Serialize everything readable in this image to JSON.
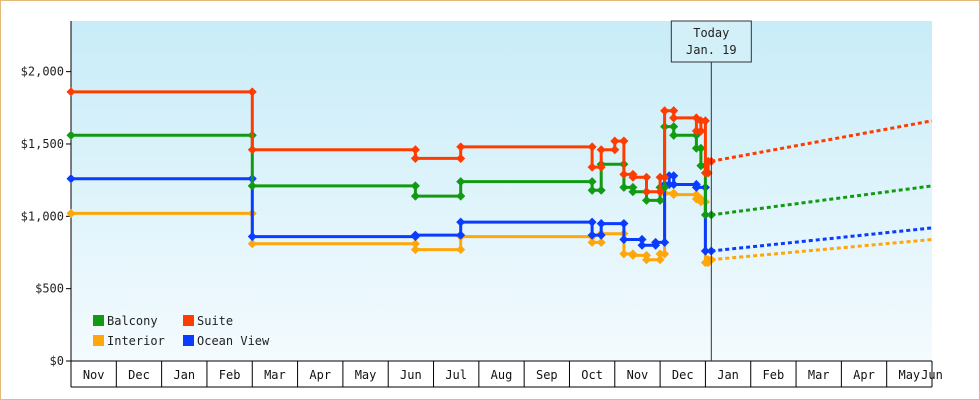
{
  "chart_data": {
    "type": "line",
    "style": "step",
    "y_ticks": [
      "$0",
      "$500",
      "$1,000",
      "$1,500",
      "$2,000"
    ],
    "y_tick_values": [
      0,
      500,
      1000,
      1500,
      2000
    ],
    "ylim": [
      0,
      2350
    ],
    "xlim": [
      0,
      19
    ],
    "months": [
      "Nov",
      "Dec",
      "Jan",
      "Feb",
      "Mar",
      "Apr",
      "May",
      "Jun",
      "Jul",
      "Aug",
      "Sep",
      "Oct",
      "Nov",
      "Dec",
      "Jan",
      "Feb",
      "Mar",
      "Apr",
      "May",
      "Jun"
    ],
    "today": {
      "line1": "Today",
      "line2": "Jan. 19",
      "x": 14.13
    },
    "grid": false,
    "legend": {
      "placement": "bottom-left"
    },
    "series": [
      {
        "name": "Suite",
        "color": "#ff3c00",
        "points": [
          [
            0,
            1860
          ],
          [
            4,
            1860
          ],
          [
            4,
            1460
          ],
          [
            7.6,
            1460
          ],
          [
            7.6,
            1400
          ],
          [
            8.6,
            1400
          ],
          [
            8.6,
            1480
          ],
          [
            11.5,
            1480
          ],
          [
            11.5,
            1340
          ],
          [
            11.7,
            1340
          ],
          [
            11.7,
            1460
          ],
          [
            12.0,
            1460
          ],
          [
            12.0,
            1520
          ],
          [
            12.2,
            1520
          ],
          [
            12.2,
            1290
          ],
          [
            12.4,
            1290
          ],
          [
            12.4,
            1270
          ],
          [
            12.7,
            1270
          ],
          [
            12.7,
            1170
          ],
          [
            13.0,
            1170
          ],
          [
            13.0,
            1270
          ],
          [
            13.1,
            1270
          ],
          [
            13.1,
            1730
          ],
          [
            13.3,
            1730
          ],
          [
            13.3,
            1680
          ],
          [
            13.8,
            1680
          ],
          [
            13.8,
            1590
          ],
          [
            13.9,
            1590
          ],
          [
            13.9,
            1660
          ],
          [
            14.0,
            1660
          ],
          [
            14.0,
            1300
          ],
          [
            14.06,
            1300
          ],
          [
            14.06,
            1380
          ],
          [
            14.13,
            1380
          ]
        ],
        "forecast": [
          [
            14.13,
            1380
          ],
          [
            19,
            1660
          ]
        ]
      },
      {
        "name": "Balcony",
        "color": "#129b12",
        "points": [
          [
            0,
            1560
          ],
          [
            4,
            1560
          ],
          [
            4,
            1210
          ],
          [
            7.6,
            1210
          ],
          [
            7.6,
            1140
          ],
          [
            8.6,
            1140
          ],
          [
            8.6,
            1240
          ],
          [
            11.5,
            1240
          ],
          [
            11.5,
            1180
          ],
          [
            11.7,
            1180
          ],
          [
            11.7,
            1360
          ],
          [
            12.2,
            1360
          ],
          [
            12.2,
            1200
          ],
          [
            12.4,
            1200
          ],
          [
            12.4,
            1170
          ],
          [
            12.7,
            1170
          ],
          [
            12.7,
            1110
          ],
          [
            13.0,
            1110
          ],
          [
            13.0,
            1200
          ],
          [
            13.1,
            1200
          ],
          [
            13.1,
            1620
          ],
          [
            13.3,
            1620
          ],
          [
            13.3,
            1560
          ],
          [
            13.8,
            1560
          ],
          [
            13.8,
            1470
          ],
          [
            13.9,
            1470
          ],
          [
            13.9,
            1350
          ],
          [
            14.0,
            1350
          ],
          [
            14.0,
            1010
          ],
          [
            14.13,
            1010
          ]
        ],
        "forecast": [
          [
            14.13,
            1010
          ],
          [
            19,
            1210
          ]
        ]
      },
      {
        "name": "Ocean View",
        "color": "#0a3cff",
        "points": [
          [
            0,
            1260
          ],
          [
            4,
            1260
          ],
          [
            4,
            860
          ],
          [
            7.6,
            860
          ],
          [
            7.6,
            870
          ],
          [
            8.6,
            870
          ],
          [
            8.6,
            960
          ],
          [
            11.5,
            960
          ],
          [
            11.5,
            870
          ],
          [
            11.7,
            870
          ],
          [
            11.7,
            950
          ],
          [
            12.2,
            950
          ],
          [
            12.2,
            840
          ],
          [
            12.6,
            840
          ],
          [
            12.6,
            800
          ],
          [
            12.9,
            800
          ],
          [
            12.9,
            820
          ],
          [
            13.1,
            820
          ],
          [
            13.1,
            1220
          ],
          [
            13.2,
            1220
          ],
          [
            13.2,
            1280
          ],
          [
            13.3,
            1280
          ],
          [
            13.3,
            1220
          ],
          [
            13.8,
            1220
          ],
          [
            13.8,
            1200
          ],
          [
            14.0,
            1200
          ],
          [
            14.0,
            760
          ],
          [
            14.13,
            760
          ]
        ],
        "forecast": [
          [
            14.13,
            760
          ],
          [
            19,
            920
          ]
        ]
      },
      {
        "name": "Interior",
        "color": "#ffa60a",
        "points": [
          [
            0,
            1020
          ],
          [
            4,
            1020
          ],
          [
            4,
            810
          ],
          [
            7.6,
            810
          ],
          [
            7.6,
            770
          ],
          [
            8.6,
            770
          ],
          [
            8.6,
            860
          ],
          [
            11.5,
            860
          ],
          [
            11.5,
            820
          ],
          [
            11.7,
            820
          ],
          [
            11.7,
            880
          ],
          [
            12.2,
            880
          ],
          [
            12.2,
            740
          ],
          [
            12.4,
            740
          ],
          [
            12.4,
            730
          ],
          [
            12.7,
            730
          ],
          [
            12.7,
            700
          ],
          [
            13.0,
            700
          ],
          [
            13.0,
            740
          ],
          [
            13.1,
            740
          ],
          [
            13.1,
            1160
          ],
          [
            13.3,
            1160
          ],
          [
            13.3,
            1150
          ],
          [
            13.8,
            1150
          ],
          [
            13.8,
            1120
          ],
          [
            13.9,
            1120
          ],
          [
            13.9,
            1100
          ],
          [
            14.0,
            1100
          ],
          [
            14.0,
            680
          ],
          [
            14.06,
            680
          ],
          [
            14.06,
            700
          ],
          [
            14.13,
            700
          ]
        ],
        "forecast": [
          [
            14.13,
            700
          ],
          [
            19,
            840
          ]
        ]
      }
    ],
    "legend_entries": [
      {
        "name": "Balcony",
        "color": "#129b12"
      },
      {
        "name": "Suite",
        "color": "#ff3c00"
      },
      {
        "name": "Interior",
        "color": "#ffa60a"
      },
      {
        "name": "Ocean View",
        "color": "#0a3cff"
      }
    ]
  }
}
